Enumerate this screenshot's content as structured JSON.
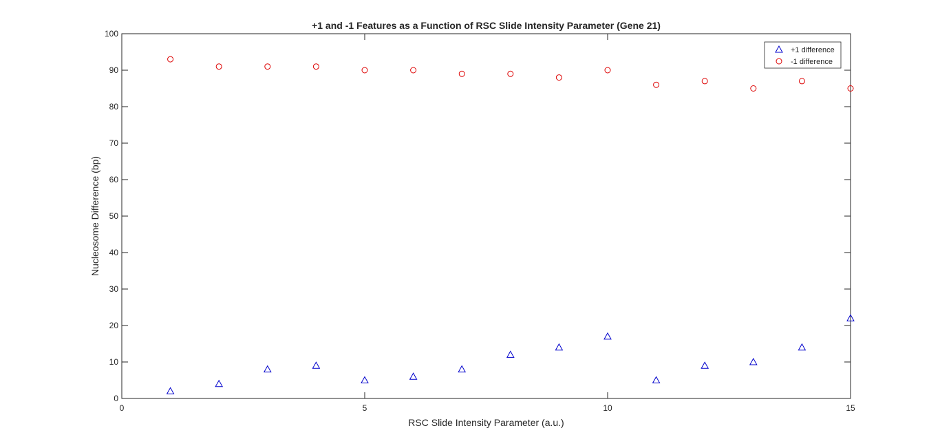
{
  "chart_data": {
    "type": "scatter",
    "title": "+1 and -1 Features as a Function of RSC Slide Intensity Parameter (Gene 21)",
    "xlabel": "RSC Slide Intensity Parameter (a.u.)",
    "ylabel": "Nucleosome Difference (bp)",
    "xlim": [
      0,
      15
    ],
    "ylim": [
      0,
      100
    ],
    "xticks": [
      0,
      5,
      10,
      15
    ],
    "yticks": [
      0,
      10,
      20,
      30,
      40,
      50,
      60,
      70,
      80,
      90,
      100
    ],
    "grid": false,
    "legend_position": "top-right",
    "x": [
      1,
      2,
      3,
      4,
      5,
      6,
      7,
      8,
      9,
      10,
      11,
      12,
      13,
      14,
      15
    ],
    "series": [
      {
        "name": "+1 difference",
        "marker": "triangle",
        "color": "#0000cc",
        "values": [
          2,
          4,
          8,
          9,
          5,
          6,
          8,
          12,
          14,
          17,
          5,
          9,
          10,
          14,
          22
        ]
      },
      {
        "name": "-1 difference",
        "marker": "circle",
        "color": "#dd0000",
        "values": [
          93,
          91,
          91,
          91,
          90,
          90,
          89,
          89,
          88,
          90,
          86,
          87,
          85,
          87,
          85
        ]
      }
    ]
  }
}
